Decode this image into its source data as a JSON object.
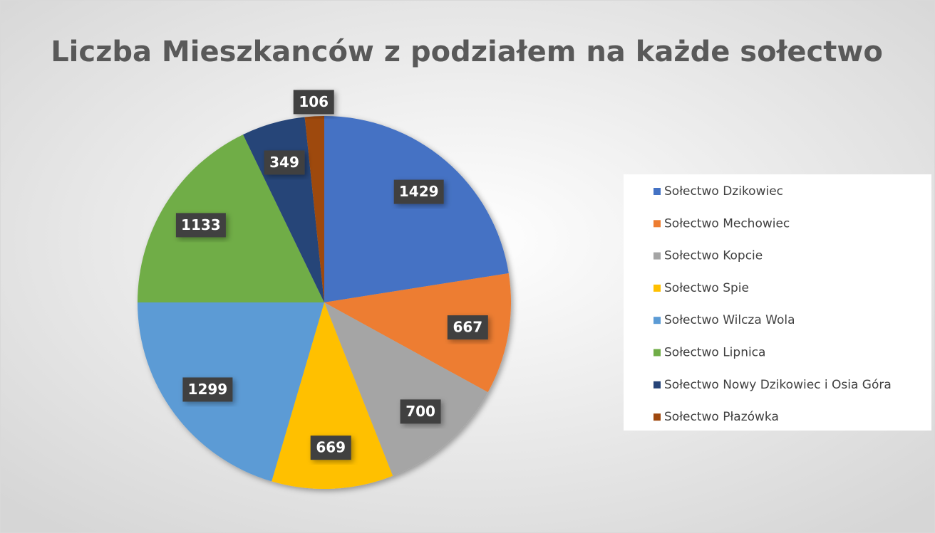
{
  "chart_data": {
    "type": "pie",
    "title": "Liczba Mieszkanców z podziałem na każde sołectwo",
    "categories": [
      "Sołectwo Dzikowiec",
      "Sołectwo Mechowiec",
      "Sołectwo Kopcie",
      "Sołectwo Spie",
      "Sołectwo Wilcza Wola",
      "Sołectwo Lipnica",
      "Sołectwo Nowy Dzikowiec i Osia Góra",
      "Sołectwo Płazówka"
    ],
    "values": [
      1429,
      667,
      700,
      669,
      1299,
      1133,
      349,
      106
    ],
    "colors": [
      "#4472c4",
      "#ed7d31",
      "#a5a5a5",
      "#ffc000",
      "#5b9bd5",
      "#70ad47",
      "#264478",
      "#9e480e"
    ],
    "legend": "right"
  }
}
